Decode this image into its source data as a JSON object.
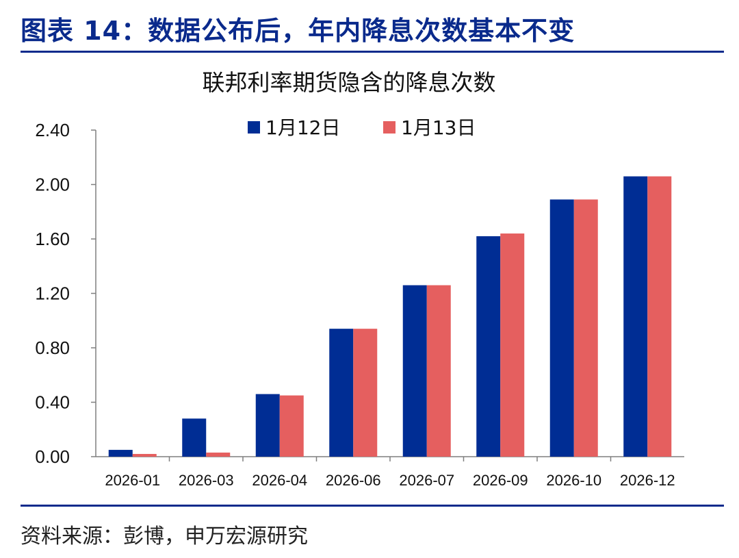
{
  "header": {
    "title": "图表 14：数据公布后，年内降息次数基本不变",
    "source": "资料来源：彭博，申万宏源研究"
  },
  "colors": {
    "brand": "#0a2a8c",
    "series1": "#002d94",
    "series2": "#e55f5f"
  },
  "chart_data": {
    "type": "bar",
    "title": "联邦利率期货隐含的降息次数",
    "categories": [
      "2026-01",
      "2026-03",
      "2026-04",
      "2026-06",
      "2026-07",
      "2026-09",
      "2026-10",
      "2026-12"
    ],
    "series": [
      {
        "name": "1月12日",
        "values": [
          0.05,
          0.28,
          0.46,
          0.94,
          1.26,
          1.62,
          1.89,
          2.06
        ]
      },
      {
        "name": "1月13日",
        "values": [
          0.02,
          0.03,
          0.45,
          0.94,
          1.26,
          1.64,
          1.89,
          2.06
        ]
      }
    ],
    "y_ticks": [
      "0.00",
      "0.40",
      "0.80",
      "1.20",
      "1.60",
      "2.00",
      "2.40"
    ],
    "ylim": [
      0,
      2.4
    ],
    "xlabel": "",
    "ylabel": "",
    "legend_position": "top-center",
    "grid": false
  }
}
